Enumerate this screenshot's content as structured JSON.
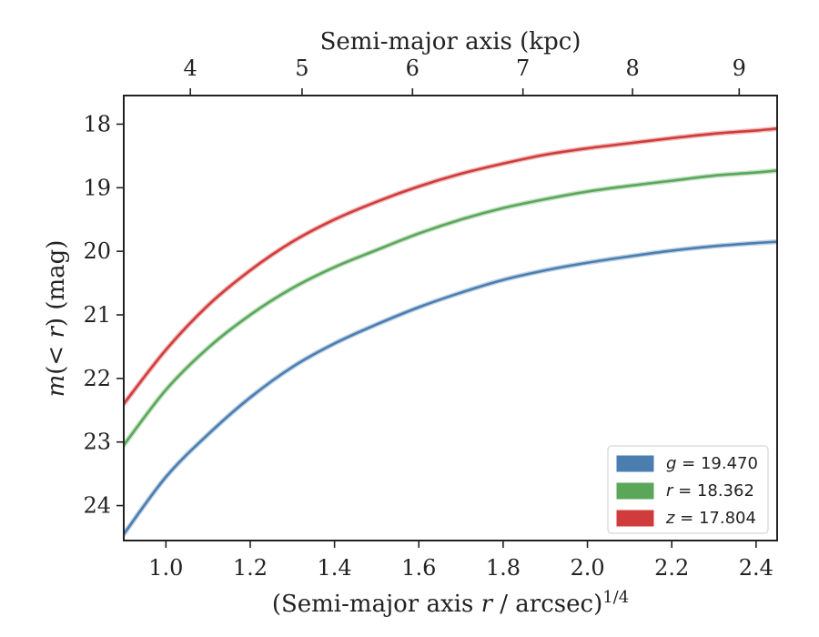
{
  "chart_data": {
    "type": "line",
    "title": "",
    "xlabel": "(Semi-major axis r / arcsec)^(1/4)",
    "ylabel": "m(< r) (mag)",
    "xlabel_top": "Semi-major axis (kpc)",
    "xlim": [
      0.9,
      2.45
    ],
    "ylim": [
      24.55,
      17.55
    ],
    "y_inverted": true,
    "x_ticks": [
      1.0,
      1.2,
      1.4,
      1.6,
      1.8,
      2.0,
      2.2,
      2.4
    ],
    "x_tick_labels": [
      "1.0",
      "1.2",
      "1.4",
      "1.6",
      "1.8",
      "2.0",
      "2.2",
      "2.4"
    ],
    "y_ticks": [
      18,
      19,
      20,
      21,
      22,
      23,
      24
    ],
    "y_tick_labels": [
      "18",
      "19",
      "20",
      "21",
      "22",
      "23",
      "24"
    ],
    "top_ticks_kpc": [
      4,
      5,
      6,
      7,
      8,
      9
    ],
    "top_tick_labels": [
      "4",
      "5",
      "6",
      "7",
      "8",
      "9"
    ],
    "top_tick_positions_x": [
      1.058,
      1.323,
      1.585,
      1.847,
      2.107,
      2.36
    ],
    "grid": false,
    "legend_position": "bottom-right",
    "x": [
      0.9,
      1.0,
      1.1,
      1.2,
      1.3,
      1.4,
      1.5,
      1.6,
      1.7,
      1.8,
      1.9,
      2.0,
      2.1,
      2.2,
      2.3,
      2.4,
      2.45
    ],
    "series": [
      {
        "name": "g = 19.470",
        "legend_var": "g",
        "legend_value": "19.470",
        "color": "#4a7eb0",
        "values": [
          24.45,
          23.55,
          22.88,
          22.3,
          21.82,
          21.45,
          21.15,
          20.88,
          20.65,
          20.45,
          20.3,
          20.18,
          20.08,
          19.99,
          19.92,
          19.87,
          19.85
        ]
      },
      {
        "name": "r = 18.362",
        "legend_var": "r",
        "legend_value": "18.362",
        "color": "#5aa75a",
        "values": [
          23.05,
          22.18,
          21.52,
          21.0,
          20.58,
          20.25,
          19.98,
          19.72,
          19.5,
          19.32,
          19.18,
          19.06,
          18.97,
          18.89,
          18.81,
          18.76,
          18.73
        ]
      },
      {
        "name": "z = 17.804",
        "legend_var": "z",
        "legend_value": "17.804",
        "color": "#d03c3c",
        "values": [
          22.4,
          21.55,
          20.85,
          20.3,
          19.85,
          19.5,
          19.22,
          18.98,
          18.78,
          18.62,
          18.48,
          18.38,
          18.3,
          18.22,
          18.15,
          18.1,
          18.07
        ]
      }
    ]
  }
}
